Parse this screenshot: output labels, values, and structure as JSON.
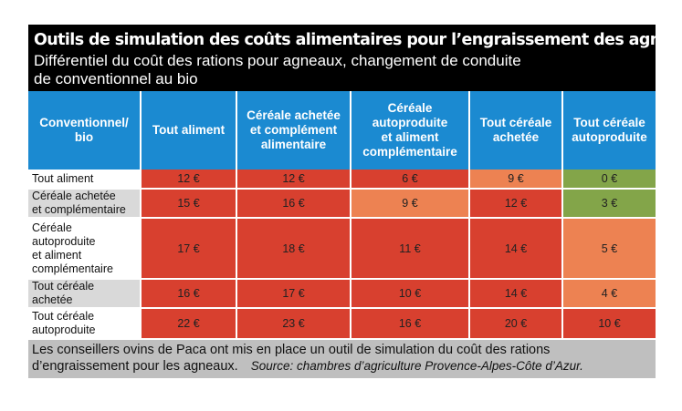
{
  "header": {
    "title": "Outils de simulation des coûts alimentaires pour l’engraissement des agneaux",
    "subtitle_line1": "Différentiel du coût des rations pour agneaux, changement de conduite",
    "subtitle_line2": "de conventionnel au bio"
  },
  "table": {
    "corner": [
      "Conventionnel/",
      "bio"
    ],
    "columns": [
      [
        "Tout aliment"
      ],
      [
        "Céréale achetée",
        "et complément",
        "alimentaire"
      ],
      [
        "Céréale",
        "autoproduite",
        "et aliment",
        "complémentaire"
      ],
      [
        "Tout céréale",
        "achetée"
      ],
      [
        "Tout céréale",
        "autoproduite"
      ]
    ],
    "rows": [
      {
        "label": [
          "Tout aliment"
        ],
        "cells": [
          "12 €",
          "12 €",
          "6 €",
          "9 €",
          "0 €"
        ],
        "colors": [
          "red",
          "red",
          "red",
          "orange",
          "green"
        ]
      },
      {
        "label": [
          "Céréale achetée",
          "et complémentaire"
        ],
        "cells": [
          "15 €",
          "16 €",
          "9 €",
          "12 €",
          "3 €"
        ],
        "colors": [
          "red",
          "red",
          "orange",
          "red",
          "green"
        ]
      },
      {
        "label": [
          "Céréale",
          "autoproduite",
          "et aliment",
          "complémentaire"
        ],
        "cells": [
          "17 €",
          "18 €",
          "11 €",
          "14 €",
          "5 €"
        ],
        "colors": [
          "red",
          "red",
          "red",
          "red",
          "orange"
        ]
      },
      {
        "label": [
          "Tout céréale",
          "achetée"
        ],
        "cells": [
          "16 €",
          "17 €",
          "10 €",
          "14 €",
          "4 €"
        ],
        "colors": [
          "red",
          "red",
          "red",
          "red",
          "orange"
        ]
      },
      {
        "label": [
          "Tout céréale",
          " autoproduite"
        ],
        "cells": [
          "22 €",
          "23 €",
          "16 €",
          "20 €",
          "10 €"
        ],
        "colors": [
          "red",
          "red",
          "red",
          "red",
          "red"
        ]
      }
    ]
  },
  "footer": {
    "line1": "Les conseillers ovins de Paca ont mis en place un outil de simulation du coût des rations",
    "line2": "d’engraissement pour les agneaux.",
    "source": "Source: chambres d’agriculture Provence-Alpes-Côte d’Azur."
  },
  "colors": {
    "red": "#d8402f",
    "orange": "#ed8252",
    "green": "#83a549",
    "header_blue": "#1b8ad1"
  }
}
